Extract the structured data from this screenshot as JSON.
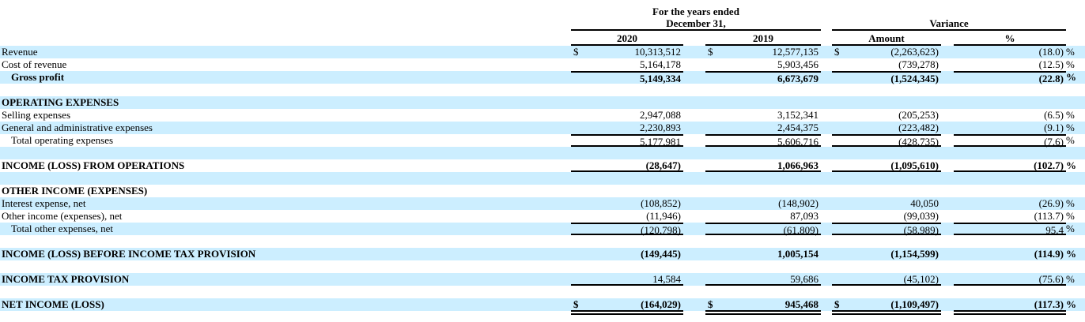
{
  "colors": {
    "highlight": "#cceeff",
    "text": "#000000",
    "rule": "#000000"
  },
  "header": {
    "years_line1": "For the years ended",
    "years_line2": "December 31,",
    "variance": "Variance",
    "columns": [
      "2020",
      "2019",
      "Amount",
      "%"
    ]
  },
  "rows": [
    {
      "name": "row-revenue",
      "label": "Revenue",
      "shaded": true,
      "dollar": true,
      "v2020": "10,313,512",
      "v2019": "12,577,135",
      "amount": "(2,263,623)",
      "pct": "(18.0)",
      "pct_suffix": "%"
    },
    {
      "name": "row-cost-of-revenue",
      "label": "Cost of revenue",
      "shaded": false,
      "v2020": "5,164,178",
      "v2019": "5,903,456",
      "amount": "(739,278)",
      "pct": "(12.5)",
      "pct_suffix": "%"
    },
    {
      "name": "row-gross-profit",
      "label": "Gross profit",
      "shaded": true,
      "label_bold": true,
      "indent": true,
      "values_bold": true,
      "border": "top",
      "v2020": "5,149,334",
      "v2019": "6,673,679",
      "amount": "(1,524,345)",
      "pct": "(22.8)",
      "pct_suffix": "%"
    },
    {
      "name": "spacer-row",
      "blank": true,
      "shaded": false
    },
    {
      "name": "row-operating-expenses-header",
      "label": "OPERATING EXPENSES",
      "shaded": true,
      "label_bold": true
    },
    {
      "name": "row-selling-expenses",
      "label": "Selling expenses",
      "shaded": false,
      "v2020": "2,947,088",
      "v2019": "3,152,341",
      "amount": "(205,253)",
      "pct": "(6.5)",
      "pct_suffix": "%"
    },
    {
      "name": "row-general-administrative-expenses",
      "label": "General and administrative expenses",
      "shaded": true,
      "v2020": "2,230,893",
      "v2019": "2,454,375",
      "amount": "(223,482)",
      "pct": "(9.1)",
      "pct_suffix": "%"
    },
    {
      "name": "row-total-operating-expenses",
      "label": "Total operating expenses",
      "shaded": false,
      "indent": true,
      "border": "topbottom",
      "v2020": "5,177,981",
      "v2019": "5,606,716",
      "amount": "(428,735)",
      "pct": "(7.6)",
      "pct_suffix": "%"
    },
    {
      "name": "spacer-row",
      "blank": true,
      "shaded": true
    },
    {
      "name": "row-income-loss-from-operations",
      "label": "INCOME (LOSS) FROM OPERATIONS",
      "shaded": false,
      "label_bold": true,
      "values_bold": true,
      "border": "bottom",
      "v2020": "(28,647)",
      "v2019": "1,066,963",
      "amount": "(1,095,610)",
      "pct": "(102.7)",
      "pct_suffix": "%"
    },
    {
      "name": "spacer-row",
      "blank": true,
      "shaded": true
    },
    {
      "name": "row-other-income-expenses-header",
      "label": "OTHER INCOME (EXPENSES)",
      "shaded": false,
      "label_bold": true
    },
    {
      "name": "row-interest-expense-net",
      "label": "Interest expense, net",
      "shaded": true,
      "v2020": "(108,852)",
      "v2019": "(148,902)",
      "amount": "40,050",
      "pct": "(26.9)",
      "pct_suffix": "%"
    },
    {
      "name": "row-other-income-expenses-net",
      "label": "Other income (expenses), net",
      "shaded": false,
      "v2020": "(11,946)",
      "v2019": "87,093",
      "amount": "(99,039)",
      "pct": "(113.7)",
      "pct_suffix": "%"
    },
    {
      "name": "row-total-other-expenses-net",
      "label": "Total other expenses, net",
      "shaded": true,
      "indent": true,
      "border": "topbottom",
      "v2020": "(120,798)",
      "v2019": "(61,809)",
      "amount": "(58,989)",
      "pct": "95.4",
      "pct_suffix": "%"
    },
    {
      "name": "spacer-row",
      "blank": true,
      "shaded": false
    },
    {
      "name": "row-income-loss-before-income-tax-provision",
      "label": "INCOME (LOSS) BEFORE INCOME TAX PROVISION",
      "shaded": true,
      "label_bold": true,
      "values_bold": true,
      "v2020": "(149,445)",
      "v2019": "1,005,154",
      "amount": "(1,154,599)",
      "pct": "(114.9)",
      "pct_suffix": "%"
    },
    {
      "name": "spacer-row",
      "blank": true,
      "shaded": false
    },
    {
      "name": "row-income-tax-provision",
      "label": "INCOME TAX PROVISION",
      "shaded": true,
      "label_bold": true,
      "border": "bottom",
      "v2020": "14,584",
      "v2019": "59,686",
      "amount": "(45,102)",
      "pct": "(75.6)",
      "pct_suffix": "%"
    },
    {
      "name": "spacer-row",
      "blank": true,
      "shaded": false
    },
    {
      "name": "row-net-income-loss",
      "label": "NET INCOME (LOSS)",
      "shaded": true,
      "label_bold": true,
      "values_bold": true,
      "dollar": true,
      "border": "double-bottom",
      "v2020": "(164,029)",
      "v2019": "945,468",
      "amount": "(1,109,497)",
      "pct": "(117.3)",
      "pct_suffix": "%"
    },
    {
      "name": "spacer-row",
      "blank": true,
      "shaded": false
    }
  ]
}
